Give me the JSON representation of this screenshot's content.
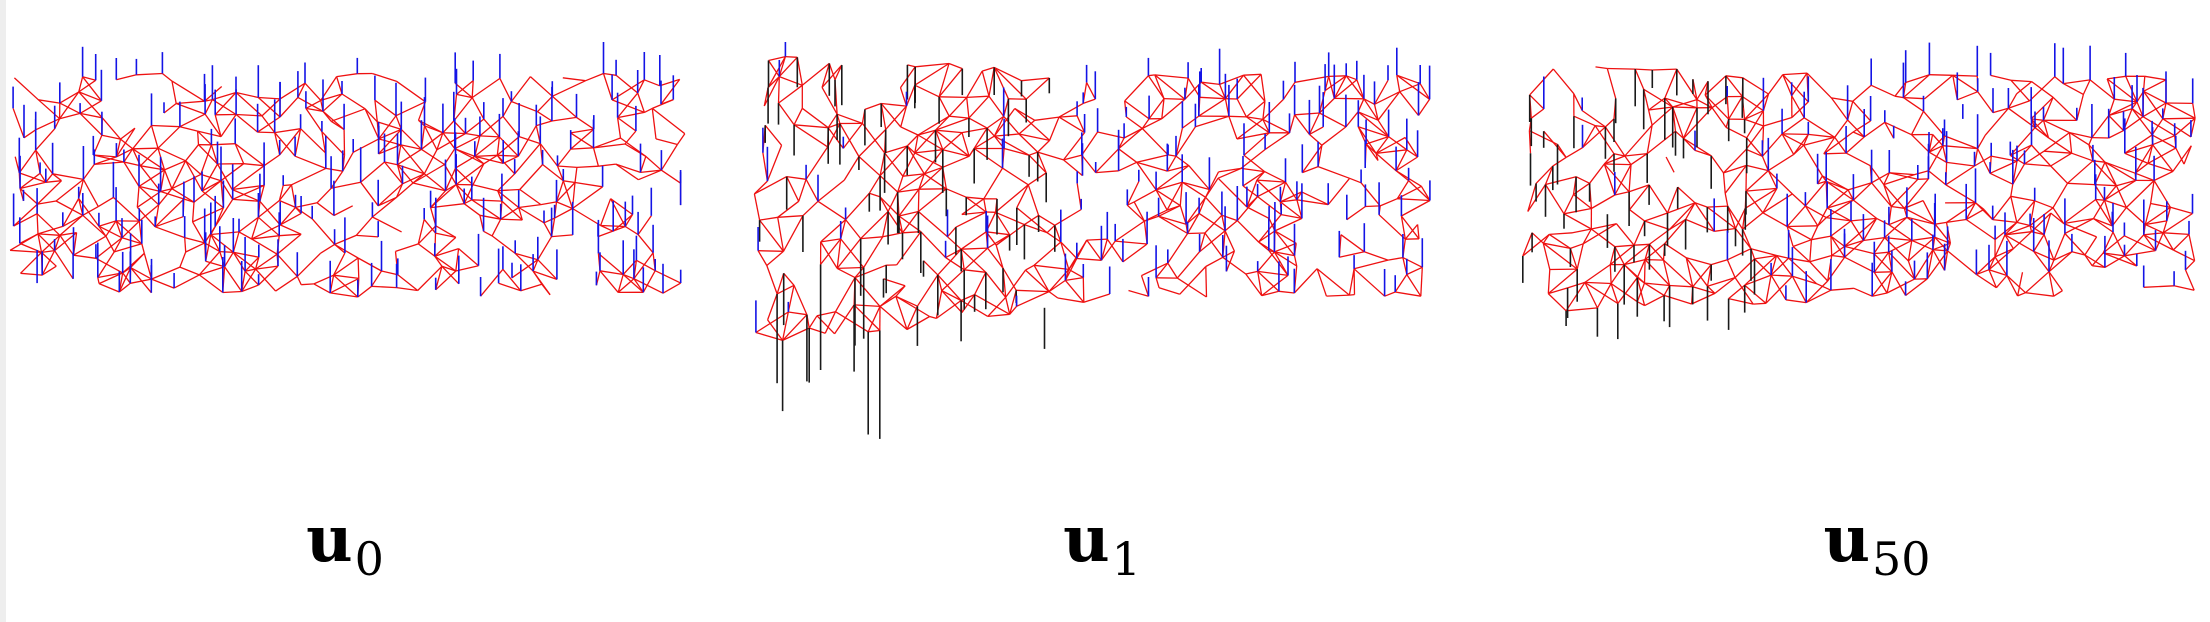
{
  "colors": {
    "mesh": "#ee1111",
    "vector_up": "#1414e6",
    "vector_down": "#1a1a1a",
    "background": "#ffffff"
  },
  "panels": [
    {
      "id": "u0",
      "symbol": "u",
      "subscript": "0",
      "seed": 11,
      "mode": "up",
      "stretch": 0,
      "dark_region_fraction": 0,
      "tall_region_fraction": 0
    },
    {
      "id": "u1",
      "symbol": "u",
      "subscript": "1",
      "seed": 29,
      "mode": "mixed",
      "stretch": 0.55,
      "dark_region_fraction": 0.45,
      "tall_region_fraction": 0.18
    },
    {
      "id": "u50",
      "symbol": "u",
      "subscript": "50",
      "seed": 53,
      "mode": "mixed",
      "stretch": 0.2,
      "dark_region_fraction": 0.35,
      "tall_region_fraction": 0
    }
  ]
}
